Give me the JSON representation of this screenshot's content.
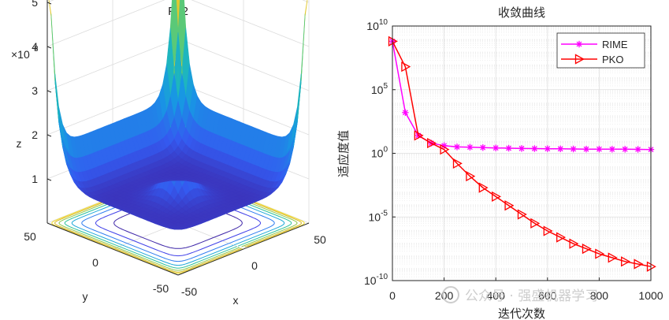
{
  "chart_data": [
    {
      "type": "surface",
      "title": "F12",
      "xlabel": "x",
      "ylabel": "y",
      "zlabel": "z",
      "z_exponent_label": "×10",
      "z_exponent": "8",
      "x_ticks": [
        "-50",
        "0",
        "50"
      ],
      "y_ticks": [
        "-50",
        "0",
        "50"
      ],
      "z_ticks": [
        "1",
        "2",
        "3",
        "4",
        "5"
      ],
      "xlim": [
        -50,
        50
      ],
      "ylim": [
        -50,
        50
      ],
      "zlim": [
        0,
        5
      ],
      "colormap": "parula",
      "colors": {
        "low": "#3e26a8",
        "mid": "#22b4c4",
        "high": "#f9d72a"
      }
    },
    {
      "type": "line",
      "title": "收敛曲线",
      "xlabel": "迭代次数",
      "ylabel": "适应度值",
      "yscale": "log",
      "xlim": [
        0,
        1000
      ],
      "ylim": [
        1e-10,
        10000000000.0
      ],
      "x_ticks": [
        "0",
        "200",
        "400",
        "600",
        "800",
        "1000"
      ],
      "y_ticks": [
        {
          "base": "10",
          "exp": "-10",
          "value": -10
        },
        {
          "base": "10",
          "exp": "-5",
          "value": -5
        },
        {
          "base": "10",
          "exp": "0",
          "value": 0
        },
        {
          "base": "10",
          "exp": "5",
          "value": 5
        },
        {
          "base": "10",
          "exp": "10",
          "value": 10
        }
      ],
      "legend_position": "top-right",
      "series": [
        {
          "name": "RIME",
          "color": "#ff00ff",
          "marker": "asterisk",
          "x": [
            0,
            50,
            100,
            150,
            200,
            250,
            300,
            350,
            400,
            450,
            500,
            550,
            600,
            650,
            700,
            750,
            800,
            850,
            900,
            950,
            1000
          ],
          "log10_y": [
            8.8,
            3.2,
            1.4,
            0.8,
            0.6,
            0.5,
            0.48,
            0.45,
            0.42,
            0.4,
            0.38,
            0.37,
            0.36,
            0.35,
            0.34,
            0.33,
            0.33,
            0.32,
            0.32,
            0.31,
            0.3
          ]
        },
        {
          "name": "PKO",
          "color": "#ff0000",
          "marker": "triangle-right",
          "x": [
            0,
            50,
            100,
            150,
            200,
            250,
            300,
            350,
            400,
            450,
            500,
            550,
            600,
            650,
            700,
            750,
            800,
            850,
            900,
            950,
            1000
          ],
          "log10_y": [
            8.8,
            6.8,
            1.4,
            0.8,
            0.3,
            -0.8,
            -1.8,
            -2.7,
            -3.4,
            -4.1,
            -4.8,
            -5.5,
            -6.1,
            -6.6,
            -7.1,
            -7.5,
            -7.9,
            -8.2,
            -8.5,
            -8.7,
            -8.9
          ]
        }
      ]
    }
  ],
  "watermark": "公众号 · 强盛机器学习"
}
